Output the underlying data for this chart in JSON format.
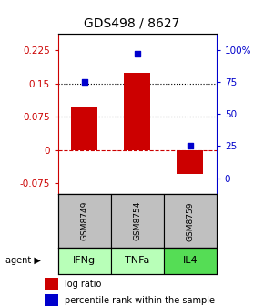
{
  "title": "GDS498 / 8627",
  "categories": [
    "IFNg",
    "TNFa",
    "IL4"
  ],
  "sample_ids": [
    "GSM8749",
    "GSM8754",
    "GSM8759"
  ],
  "log_ratios": [
    0.095,
    0.175,
    -0.055
  ],
  "percentile_ranks": [
    75,
    97,
    25
  ],
  "ylim_left": [
    -0.1,
    0.2625
  ],
  "ylim_right": [
    -12.5,
    112.5
  ],
  "yticks_left": [
    -0.075,
    0,
    0.075,
    0.15,
    0.225
  ],
  "yticks_right": [
    0,
    25,
    50,
    75,
    100
  ],
  "bar_color": "#cc0000",
  "dot_color": "#0000cc",
  "dotted_lines": [
    0.075,
    0.15
  ],
  "sample_bg": "#c0c0c0",
  "agent_colors": [
    "#b8ffb8",
    "#b8ffb8",
    "#55dd55"
  ],
  "legend_bar_color": "#cc0000",
  "legend_dot_color": "#0000cc",
  "bar_width": 0.5,
  "title_fontsize": 10,
  "tick_fontsize": 7.5,
  "label_fontsize": 7,
  "sample_fontsize": 6.5,
  "agent_fontsize": 8
}
